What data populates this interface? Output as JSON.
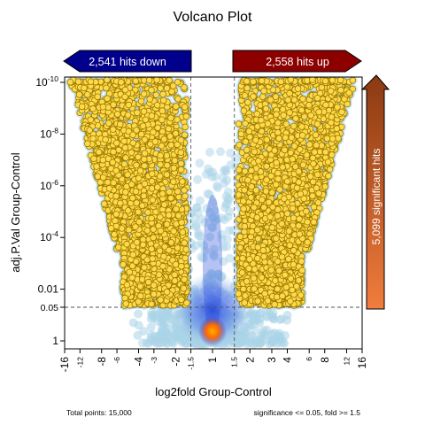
{
  "chart_data": {
    "type": "scatter",
    "title": "Volcano Plot",
    "xlabel": "log2fold Group-Control",
    "ylabel": "adj.P.Val Group-Control",
    "x_scale": "signed-log2-fold",
    "y_scale": "log10-reversed",
    "xlim": [
      -16,
      16
    ],
    "ylim": [
      1,
      1e-10
    ],
    "x_ticks": [
      "-16",
      "-12",
      "-8",
      "-6",
      "-4",
      "-3",
      "-2",
      "-1.5",
      "1",
      "1.5",
      "2",
      "3",
      "4",
      "6",
      "8",
      "12",
      "16"
    ],
    "x_ticks_small": [
      "-12",
      "-6",
      "-3",
      "-1.5",
      "1.5",
      "6",
      "12"
    ],
    "y_ticks": [
      {
        "value": 1e-10,
        "base": "10",
        "exp": "-10"
      },
      {
        "value": 1e-08,
        "base": "10",
        "exp": "-8"
      },
      {
        "value": 1e-06,
        "base": "10",
        "exp": "-6"
      },
      {
        "value": 0.0001,
        "base": "10",
        "exp": "-4"
      },
      {
        "value": 0.01,
        "base": "0.01",
        "exp": ""
      },
      {
        "value": 0.05,
        "base": "0.05",
        "exp": ""
      },
      {
        "value": 1,
        "base": "1",
        "exp": ""
      }
    ],
    "thresholds": {
      "fold": 1.5,
      "pvalue": 0.05
    },
    "annotations": {
      "down": "2,541 hits down",
      "up": "2,558 hits up",
      "significant": "5,099 significant hits"
    },
    "footer_left": "Total points: 15,000",
    "footer_right": "significance <= 0.05, fold >= 1.5",
    "colors": {
      "significant_fill": "#ffd94a",
      "significant_edge": "#9a7a00",
      "halo": "#a9d3e8",
      "density_low": "#2b4fd9",
      "density_high": "#ff7b00",
      "down_arrow": "#00008c",
      "up_arrow": "#8c0000",
      "side_arrow_top": "#8b3a12",
      "side_arrow_bottom": "#f07c3c",
      "threshold_line": "#555555"
    }
  }
}
